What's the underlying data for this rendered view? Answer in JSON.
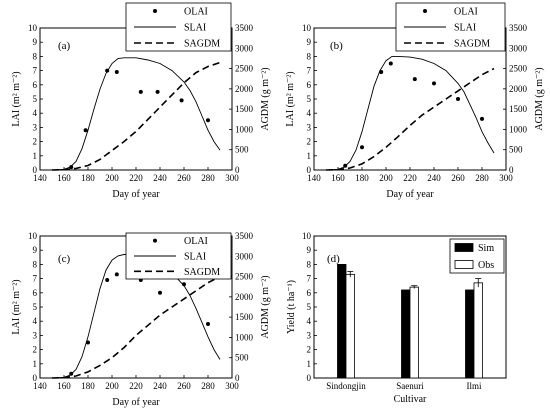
{
  "chart_data": [
    {
      "type": "line",
      "panel_label": "(a)",
      "xlabel": "Day of year",
      "ylabel_left": "LAI (m² m⁻²)",
      "ylabel_right": "AGDM (g m⁻²)",
      "xlim": [
        140,
        300
      ],
      "ylim_left": [
        0,
        10
      ],
      "ylim_right": [
        0,
        3500
      ],
      "x_ticks": [
        140,
        160,
        180,
        200,
        220,
        240,
        260,
        280,
        300
      ],
      "y_ticks_left": [
        0,
        1,
        2,
        3,
        4,
        5,
        6,
        7,
        8,
        9,
        10
      ],
      "y_ticks_right": [
        0,
        500,
        1000,
        1500,
        2000,
        2500,
        3000,
        3500
      ],
      "legend": [
        "OLAI",
        "SLAI",
        "SAGDM"
      ],
      "series": [
        {
          "name": "OLAI",
          "style": "points",
          "axis": "left",
          "x": [
            166,
            178,
            196,
            204,
            224,
            238,
            258,
            280
          ],
          "y": [
            0.2,
            2.8,
            7.0,
            6.9,
            5.5,
            5.5,
            4.9,
            3.5
          ]
        },
        {
          "name": "SLAI",
          "style": "solid",
          "axis": "left",
          "x": [
            150,
            160,
            165,
            170,
            175,
            180,
            185,
            190,
            195,
            200,
            205,
            210,
            220,
            230,
            240,
            250,
            260,
            265,
            270,
            275,
            280,
            285,
            290
          ],
          "y": [
            0,
            0.05,
            0.2,
            0.6,
            1.5,
            2.8,
            4.3,
            5.7,
            6.8,
            7.5,
            7.85,
            7.9,
            7.9,
            7.75,
            7.5,
            7.0,
            6.2,
            5.6,
            4.8,
            3.8,
            2.8,
            2.0,
            1.4
          ]
        },
        {
          "name": "SAGDM",
          "style": "dashed",
          "axis": "right",
          "x": [
            150,
            160,
            170,
            180,
            190,
            200,
            210,
            220,
            230,
            240,
            250,
            260,
            270,
            280,
            290
          ],
          "y": [
            0,
            10,
            40,
            110,
            260,
            480,
            700,
            950,
            1250,
            1550,
            1850,
            2150,
            2400,
            2550,
            2650
          ]
        }
      ]
    },
    {
      "type": "line",
      "panel_label": "(b)",
      "xlabel": "Day of year",
      "ylabel_left": "LAI (m² m⁻²)",
      "ylabel_right": "AGDM (g m⁻²)",
      "xlim": [
        140,
        300
      ],
      "ylim_left": [
        0,
        10
      ],
      "ylim_right": [
        0,
        3500
      ],
      "x_ticks": [
        140,
        160,
        180,
        200,
        220,
        240,
        260,
        280,
        300
      ],
      "y_ticks_left": [
        0,
        1,
        2,
        3,
        4,
        5,
        6,
        7,
        8,
        9,
        10
      ],
      "y_ticks_right": [
        0,
        500,
        1000,
        1500,
        2000,
        2500,
        3000,
        3500
      ],
      "legend": [
        "OLAI",
        "SLAI",
        "SAGDM"
      ],
      "series": [
        {
          "name": "OLAI",
          "style": "points",
          "axis": "left",
          "x": [
            166,
            180,
            196,
            204,
            224,
            240,
            260,
            280
          ],
          "y": [
            0.3,
            1.6,
            6.9,
            7.5,
            6.4,
            6.1,
            5.0,
            3.6
          ]
        },
        {
          "name": "SLAI",
          "style": "solid",
          "axis": "left",
          "x": [
            150,
            160,
            165,
            170,
            175,
            180,
            185,
            190,
            195,
            200,
            205,
            210,
            220,
            230,
            240,
            250,
            260,
            265,
            270,
            275,
            280,
            285,
            290
          ],
          "y": [
            0,
            0.05,
            0.2,
            0.6,
            1.4,
            2.7,
            4.3,
            5.9,
            7.0,
            7.7,
            8.0,
            8.0,
            7.95,
            7.8,
            7.5,
            7.0,
            6.1,
            5.5,
            4.6,
            3.7,
            2.7,
            1.9,
            1.2
          ]
        },
        {
          "name": "SAGDM",
          "style": "dashed",
          "axis": "right",
          "x": [
            150,
            160,
            170,
            180,
            190,
            200,
            210,
            220,
            230,
            240,
            250,
            260,
            270,
            280,
            290
          ],
          "y": [
            0,
            10,
            50,
            150,
            330,
            560,
            820,
            1100,
            1350,
            1550,
            1750,
            1950,
            2150,
            2350,
            2500
          ]
        }
      ]
    },
    {
      "type": "line",
      "panel_label": "(c)",
      "xlabel": "Day of year",
      "ylabel_left": "LAI (m² m⁻²)",
      "ylabel_right": "AGDM (g m⁻²)",
      "xlim": [
        140,
        300
      ],
      "ylim_left": [
        0,
        10
      ],
      "ylim_right": [
        0,
        3500
      ],
      "x_ticks": [
        140,
        160,
        180,
        200,
        220,
        240,
        260,
        280,
        300
      ],
      "y_ticks_left": [
        0,
        1,
        2,
        3,
        4,
        5,
        6,
        7,
        8,
        9,
        10
      ],
      "y_ticks_right": [
        0,
        500,
        1000,
        1500,
        2000,
        2500,
        3000,
        3500
      ],
      "legend": [
        "OLAI",
        "SLAI",
        "SAGDM"
      ],
      "series": [
        {
          "name": "OLAI",
          "style": "points",
          "axis": "left",
          "x": [
            166,
            180,
            196,
            204,
            224,
            240,
            260,
            280
          ],
          "y": [
            0.3,
            2.5,
            6.9,
            7.3,
            6.9,
            6.0,
            6.6,
            3.8
          ]
        },
        {
          "name": "SLAI",
          "style": "solid",
          "axis": "left",
          "x": [
            150,
            160,
            165,
            170,
            175,
            180,
            185,
            190,
            195,
            200,
            205,
            210,
            220,
            230,
            240,
            250,
            260,
            265,
            270,
            275,
            280,
            285,
            290
          ],
          "y": [
            0,
            0.05,
            0.2,
            0.6,
            1.5,
            2.9,
            4.6,
            6.3,
            7.6,
            8.3,
            8.6,
            8.7,
            8.7,
            8.5,
            8.0,
            7.4,
            6.5,
            5.8,
            4.9,
            3.9,
            2.9,
            2.0,
            1.3
          ]
        },
        {
          "name": "SAGDM",
          "style": "dashed",
          "axis": "right",
          "x": [
            150,
            160,
            170,
            180,
            190,
            200,
            210,
            220,
            230,
            240,
            250,
            260,
            270,
            280,
            290
          ],
          "y": [
            0,
            10,
            50,
            150,
            310,
            500,
            750,
            1050,
            1300,
            1550,
            1750,
            1950,
            2150,
            2350,
            2500
          ]
        }
      ]
    },
    {
      "type": "bar",
      "panel_label": "(d)",
      "xlabel": "Cultivar",
      "ylabel": "Yield (t ha⁻¹)",
      "categories": [
        "Sindongjin",
        "Saenuri",
        "Ilmi"
      ],
      "ylim": [
        0,
        10
      ],
      "y_ticks": [
        0,
        1,
        2,
        3,
        4,
        5,
        6,
        7,
        8,
        9,
        10
      ],
      "legend": [
        "Sim",
        "Obs"
      ],
      "series": [
        {
          "name": "Sim",
          "color": "#000000",
          "values": [
            8.0,
            6.2,
            6.2
          ]
        },
        {
          "name": "Obs",
          "color": "#ffffff",
          "values": [
            7.3,
            6.4,
            6.7
          ],
          "errors": [
            0.2,
            0.1,
            0.3
          ]
        }
      ]
    }
  ]
}
